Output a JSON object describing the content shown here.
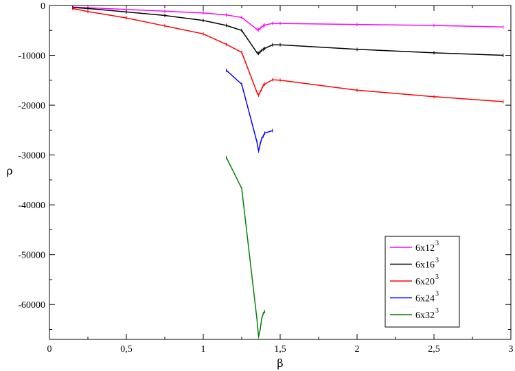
{
  "chart_data": {
    "type": "line",
    "xlabel": "β",
    "ylabel": "ρ",
    "xlim": [
      0,
      3
    ],
    "ylim": [
      -67000,
      0
    ],
    "x_ticks": [
      "0",
      "0,5",
      "1",
      "1,5",
      "2",
      "2,5",
      "3"
    ],
    "x_tick_values": [
      0,
      0.5,
      1,
      1.5,
      2,
      2.5,
      3
    ],
    "y_ticks": [
      "0",
      "-10000",
      "-20000",
      "-30000",
      "-40000",
      "-50000",
      "-60000"
    ],
    "y_tick_values": [
      0,
      -10000,
      -20000,
      -30000,
      -40000,
      -50000,
      -60000
    ],
    "grid": false,
    "legend_position": "bottom-right",
    "series": [
      {
        "name": "6x12",
        "name_sup": "3",
        "color": "#ff00ff",
        "points": [
          [
            0.15,
            -300
          ],
          [
            0.25,
            -450
          ],
          [
            0.5,
            -800
          ],
          [
            0.75,
            -1150
          ],
          [
            1.0,
            -1500
          ],
          [
            1.15,
            -1900
          ],
          [
            1.25,
            -2400
          ],
          [
            1.35,
            -4800
          ],
          [
            1.36,
            -4900
          ],
          [
            1.37,
            -4600
          ],
          [
            1.38,
            -4300
          ],
          [
            1.39,
            -4100
          ],
          [
            1.4,
            -3900
          ],
          [
            1.45,
            -3600
          ],
          [
            1.5,
            -3600
          ],
          [
            2.0,
            -3800
          ],
          [
            2.5,
            -4000
          ],
          [
            2.95,
            -4300
          ]
        ]
      },
      {
        "name": "6x16",
        "name_sup": "3",
        "color": "#000000",
        "points": [
          [
            0.15,
            -400
          ],
          [
            0.25,
            -600
          ],
          [
            0.5,
            -1300
          ],
          [
            0.75,
            -2000
          ],
          [
            1.0,
            -3000
          ],
          [
            1.15,
            -4000
          ],
          [
            1.25,
            -5000
          ],
          [
            1.35,
            -9500
          ],
          [
            1.36,
            -9600
          ],
          [
            1.37,
            -9300
          ],
          [
            1.38,
            -9000
          ],
          [
            1.39,
            -8800
          ],
          [
            1.4,
            -8600
          ],
          [
            1.45,
            -7900
          ],
          [
            1.5,
            -7900
          ],
          [
            2.0,
            -8800
          ],
          [
            2.5,
            -9500
          ],
          [
            2.95,
            -10000
          ]
        ]
      },
      {
        "name": "6x20",
        "name_sup": "3",
        "color": "#ff0000",
        "points": [
          [
            0.15,
            -600
          ],
          [
            0.25,
            -1200
          ],
          [
            0.5,
            -2500
          ],
          [
            0.75,
            -4100
          ],
          [
            1.0,
            -5700
          ],
          [
            1.15,
            -7800
          ],
          [
            1.25,
            -9400
          ],
          [
            1.35,
            -17500
          ],
          [
            1.36,
            -18000
          ],
          [
            1.37,
            -17300
          ],
          [
            1.38,
            -16800
          ],
          [
            1.39,
            -16000
          ],
          [
            1.4,
            -15800
          ],
          [
            1.45,
            -14900
          ],
          [
            1.5,
            -15000
          ],
          [
            2.0,
            -17000
          ],
          [
            2.5,
            -18300
          ],
          [
            2.95,
            -19300
          ]
        ]
      },
      {
        "name": "6x24",
        "name_sup": "3",
        "color": "#0000ff",
        "points": [
          [
            1.15,
            -13000
          ],
          [
            1.25,
            -15800
          ],
          [
            1.35,
            -27500
          ],
          [
            1.36,
            -29200
          ],
          [
            1.37,
            -27800
          ],
          [
            1.38,
            -26700
          ],
          [
            1.39,
            -26200
          ],
          [
            1.4,
            -25600
          ],
          [
            1.45,
            -25100
          ]
        ]
      },
      {
        "name": "6x32",
        "name_sup": "3",
        "color": "#008000",
        "points": [
          [
            1.15,
            -30500
          ],
          [
            1.25,
            -36700
          ],
          [
            1.35,
            -63200
          ],
          [
            1.36,
            -66500
          ],
          [
            1.37,
            -65000
          ],
          [
            1.38,
            -62800
          ],
          [
            1.39,
            -61800
          ],
          [
            1.4,
            -61400
          ]
        ]
      }
    ]
  }
}
